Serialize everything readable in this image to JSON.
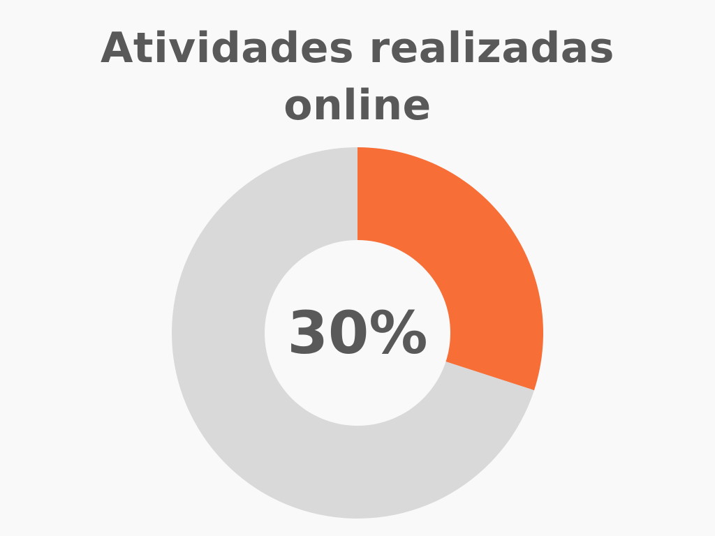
{
  "chart_data": {
    "type": "pie",
    "variant": "donut",
    "title": "Atividades realizadas online",
    "center_label": "30%",
    "slices": [
      {
        "value": 30,
        "color": "#f76e37"
      },
      {
        "value": 70,
        "color": "#d9d9d9"
      }
    ]
  },
  "colors": {
    "accent": "#f76e37",
    "remainder": "#d9d9d9",
    "text": "#595959",
    "background": "#f9f9f9"
  }
}
